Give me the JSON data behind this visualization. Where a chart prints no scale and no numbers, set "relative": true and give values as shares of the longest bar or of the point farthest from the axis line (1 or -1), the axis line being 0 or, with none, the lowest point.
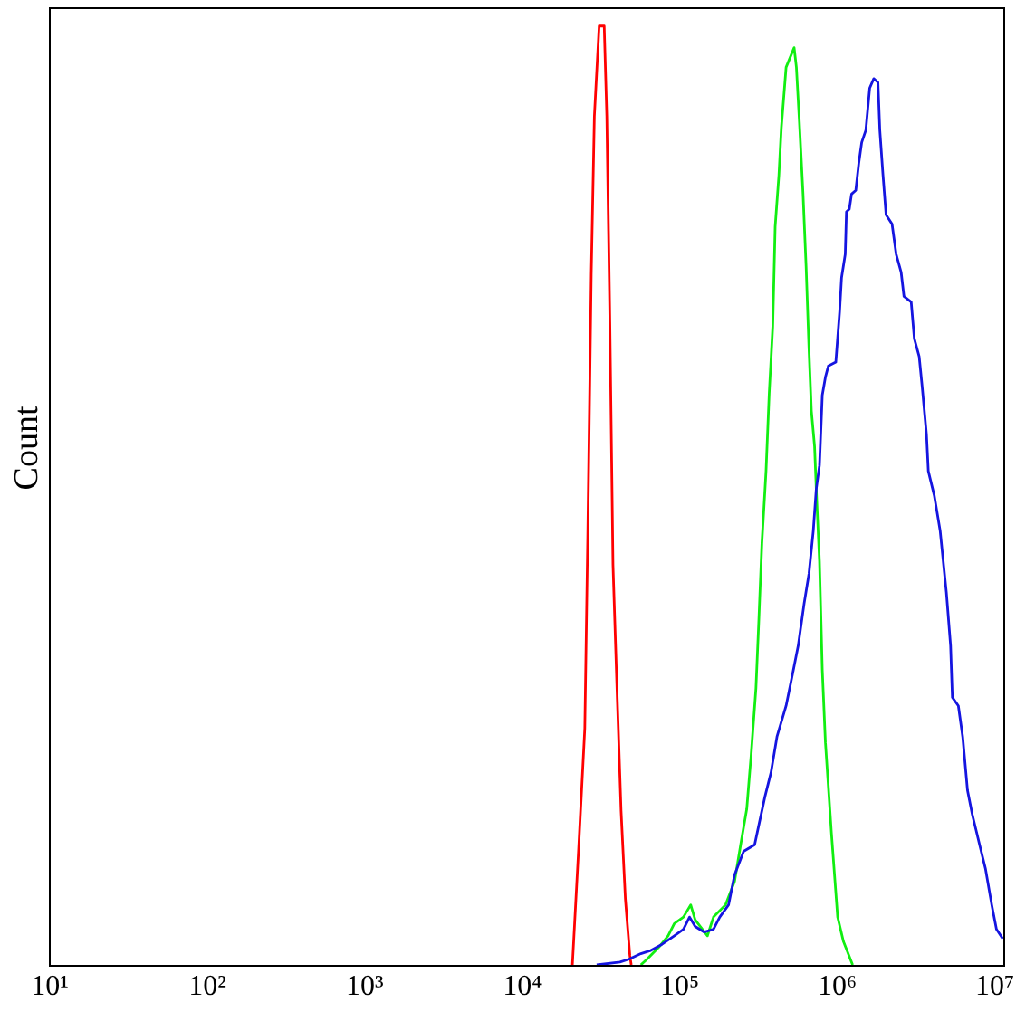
{
  "chart_data": {
    "type": "line",
    "ylabel": "Count",
    "relative": true,
    "log": "x",
    "tick_labels": "x",
    "xlim": [
      10,
      11500000
    ],
    "xticks": [
      {
        "value": 10,
        "label": "10¹"
      },
      {
        "value": 100,
        "label": "10²"
      },
      {
        "value": 1000,
        "label": "10³"
      },
      {
        "value": 10000,
        "label": "10⁴"
      },
      {
        "value": 100000,
        "label": "10⁵"
      },
      {
        "value": 1000000,
        "label": "10⁶"
      },
      {
        "value": 10000000,
        "label": "10⁷"
      }
    ],
    "series": [
      {
        "color": "#ff0000",
        "x": [
          21100,
          23100,
          25300,
          26400,
          27800,
          29100,
          31200,
          33600,
          34900,
          36500,
          38200,
          40700,
          43000,
          45800,
          48900,
          49900
        ],
        "values": [
          0,
          0.123,
          0.252,
          0.455,
          0.735,
          0.904,
          1,
          1,
          0.904,
          0.685,
          0.426,
          0.283,
          0.164,
          0.07,
          0.01,
          0
        ]
      },
      {
        "color": "#11ee11",
        "x": [
          57400,
          62800,
          74800,
          85500,
          93600,
          107000,
          119000,
          127000,
          152000,
          166000,
          198000,
          226000,
          247000,
          270000,
          288000,
          309000,
          322000,
          337000,
          358000,
          375000,
          395000,
          409000,
          432000,
          448000,
          480000,
          540000,
          558000,
          583000,
          615000,
          643000,
          671000,
          695000,
          728000,
          746000,
          782000,
          815000,
          853000,
          931000,
          1020000,
          1110000,
          1250000,
          1270000
        ],
        "values": [
          0,
          0.006,
          0.019,
          0.031,
          0.044,
          0.051,
          0.064,
          0.048,
          0.031,
          0.051,
          0.064,
          0.089,
          0.128,
          0.166,
          0.224,
          0.295,
          0.366,
          0.449,
          0.526,
          0.609,
          0.68,
          0.786,
          0.841,
          0.892,
          0.956,
          0.977,
          0.956,
          0.898,
          0.821,
          0.744,
          0.655,
          0.59,
          0.552,
          0.507,
          0.43,
          0.314,
          0.237,
          0.141,
          0.051,
          0.025,
          0.003,
          0
        ]
      },
      {
        "color": "#1515e0",
        "x": [
          30100,
          42300,
          48200,
          57400,
          65600,
          78300,
          93600,
          107000,
          117000,
          127000,
          145000,
          166000,
          182000,
          207000,
          226000,
          258000,
          303000,
          352000,
          385000,
          420000,
          480000,
          525000,
          573000,
          625000,
          671000,
          714000,
          746000,
          782000,
          815000,
          853000,
          891000,
          993000,
          1050000,
          1080000,
          1140000,
          1160000,
          1210000,
          1250000,
          1330000,
          1390000,
          1450000,
          1540000,
          1630000,
          1730000,
          1840000,
          1890000,
          1980000,
          2070000,
          2260000,
          2400000,
          2580000,
          2690000,
          2990000,
          3130000,
          3360000,
          3510000,
          3740000,
          3840000,
          4190000,
          4570000,
          5000000,
          5320000,
          5460000,
          5960000,
          6350000,
          6810000,
          7310000,
          8130000,
          8870000,
          9710000,
          10400000,
          11400000
        ],
        "values": [
          0,
          0.003,
          0.006,
          0.012,
          0.015,
          0.022,
          0.031,
          0.038,
          0.051,
          0.041,
          0.035,
          0.038,
          0.051,
          0.064,
          0.096,
          0.121,
          0.128,
          0.179,
          0.205,
          0.243,
          0.276,
          0.308,
          0.34,
          0.385,
          0.417,
          0.462,
          0.507,
          0.532,
          0.607,
          0.626,
          0.638,
          0.642,
          0.696,
          0.732,
          0.757,
          0.802,
          0.805,
          0.821,
          0.825,
          0.854,
          0.876,
          0.889,
          0.934,
          0.944,
          0.94,
          0.889,
          0.841,
          0.799,
          0.789,
          0.757,
          0.738,
          0.712,
          0.706,
          0.667,
          0.648,
          0.616,
          0.565,
          0.526,
          0.5,
          0.462,
          0.397,
          0.34,
          0.285,
          0.276,
          0.243,
          0.186,
          0.16,
          0.128,
          0.102,
          0.064,
          0.038,
          0.028
        ]
      }
    ]
  }
}
